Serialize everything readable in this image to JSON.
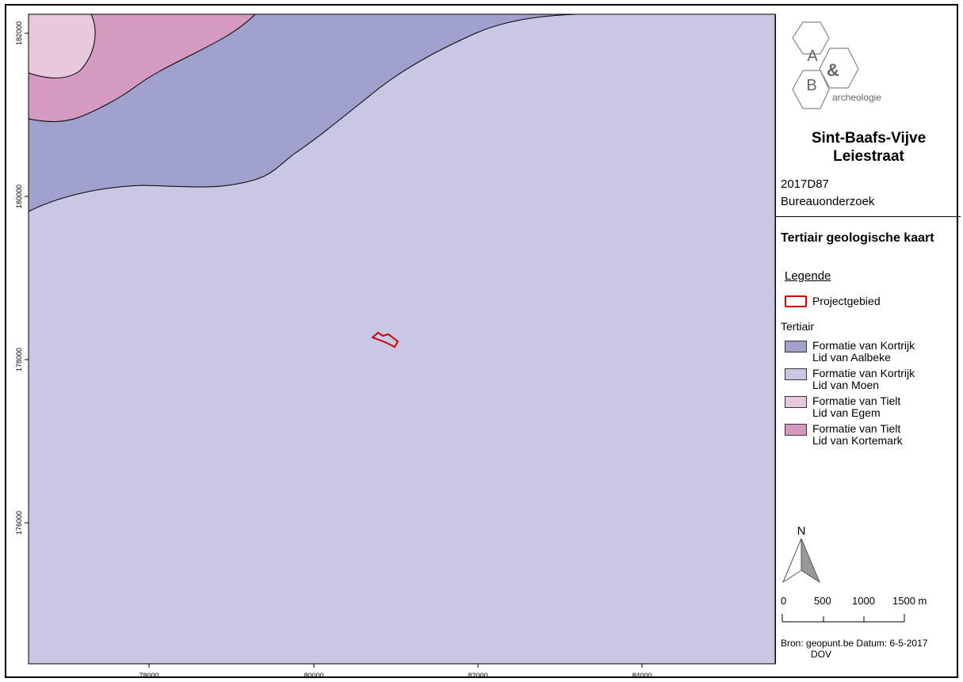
{
  "map": {
    "colors": {
      "aalbeke": "#a0a0cc",
      "moen": "#c8c8e4",
      "egem": "#e8c8dc",
      "kortemark": "#d49ac0",
      "project": "#cc0000"
    },
    "x_ticks": [
      "78000",
      "80000",
      "82000",
      "84000"
    ],
    "y_ticks": [
      "182000",
      "180000",
      "178000",
      "176000"
    ]
  },
  "header": {
    "logo_a": "A",
    "logo_amp": "&",
    "logo_b": "B",
    "logo_text": "archeologie",
    "title_line1": "Sint-Baafs-Vijve",
    "title_line2": "Leiestraat",
    "code": "2017D87",
    "type": "Bureauonderzoek"
  },
  "legend": {
    "title": "Tertiair geologische kaart",
    "legende_label": "Legende",
    "project_label": "Projectgebied",
    "section_label": "Tertiair",
    "items": [
      {
        "line1": "Formatie van Kortrijk",
        "line2": "Lid van Aalbeke",
        "color": "#a0a0cc"
      },
      {
        "line1": "Formatie van Kortrijk",
        "line2": "Lid van Moen",
        "color": "#c8c8e4"
      },
      {
        "line1": "Formatie van Tielt",
        "line2": "Lid van Egem",
        "color": "#e8c8dc"
      },
      {
        "line1": "Formatie van Tielt",
        "line2": "Lid van Kortemark",
        "color": "#d49ac0"
      }
    ]
  },
  "north": {
    "label": "N"
  },
  "scale": {
    "l0": "0",
    "l1": "500",
    "l2": "1000",
    "l3": "1500 m"
  },
  "source": {
    "line1": "Bron: geopunt.be  Datum: 6-5-2017",
    "line2": "DOV"
  }
}
